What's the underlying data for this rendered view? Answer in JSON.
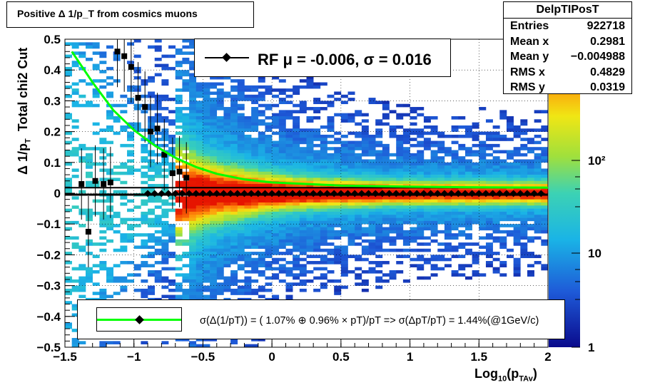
{
  "title": "Positive Δ 1/p_T from cosmics muons",
  "stats": {
    "name": "DelpTIPosT",
    "rows": [
      {
        "label": "Entries",
        "value": "922718"
      },
      {
        "label": "Mean x",
        "value": "0.2981"
      },
      {
        "label": "Mean y",
        "value": "−0.004988"
      },
      {
        "label": "RMS x",
        "value": "0.4829"
      },
      {
        "label": "RMS y",
        "value": "0.0319"
      }
    ]
  },
  "fit_legend": "RF μ = -0.006, σ =   0.016",
  "resolution_legend": "σ(Δ(1/pT)) = ( 1.07% ⊕  0.96% × pT)/pT => σ(ΔpT/pT) =  1.44%(@1GeV/c)",
  "colors": {
    "fit_curve": "#00ff00",
    "markers": "#000000",
    "frame": "#000000"
  },
  "chart_data": {
    "type": "heatmap",
    "xlabel": "Log₁₀(p_TAv)",
    "ylabel": "Δ 1/p_T  Total chi2 Cut",
    "xlim": [
      -1.5,
      2
    ],
    "ylim": [
      -0.5,
      0.5
    ],
    "x_ticks": [
      "−1.5",
      "−1",
      "−0.5",
      "0",
      "0.5",
      "1",
      "1.5",
      "2"
    ],
    "y_ticks": [
      "−0.5",
      "−0.4",
      "−0.3",
      "−0.2",
      "−0.1",
      "0",
      "0.1",
      "0.2",
      "0.3",
      "0.4",
      "0.5"
    ],
    "z_scale": "log",
    "z_ticks": [
      "1",
      "10",
      "10²"
    ],
    "grid": true,
    "profile_points": {
      "x": [
        -1.38,
        -1.33,
        -1.28,
        -1.22,
        -1.17,
        -1.12,
        -1.07,
        -1.02,
        -0.97,
        -0.92,
        -0.88,
        -0.83,
        -0.78,
        -0.72,
        -0.67,
        -0.62
      ],
      "y": [
        0.03,
        -0.125,
        0.04,
        0.03,
        0.035,
        0.46,
        0.445,
        0.41,
        0.31,
        0.28,
        0.2,
        0.21,
        0.125,
        0.065,
        0.07,
        0.05
      ]
    },
    "mean_points": {
      "x_start": -0.9,
      "x_end": 1.96,
      "step": 0.05,
      "y": -0.001
    },
    "fit_curve": {
      "name": "σ(Δ(1/pT))",
      "x": [
        -1.45,
        -1.3,
        -1.15,
        -1.0,
        -0.85,
        -0.7,
        -0.55,
        -0.4,
        -0.2,
        0.0,
        0.5,
        1.0,
        1.5,
        2.0
      ],
      "y": [
        0.46,
        0.36,
        0.27,
        0.205,
        0.155,
        0.115,
        0.085,
        0.063,
        0.045,
        0.035,
        0.025,
        0.021,
        0.019,
        0.018
      ]
    },
    "fit_mean_line": {
      "y": 0.0
    },
    "upper_line": {
      "y": 0.018
    },
    "lower_line": {
      "y": -0.002
    }
  }
}
